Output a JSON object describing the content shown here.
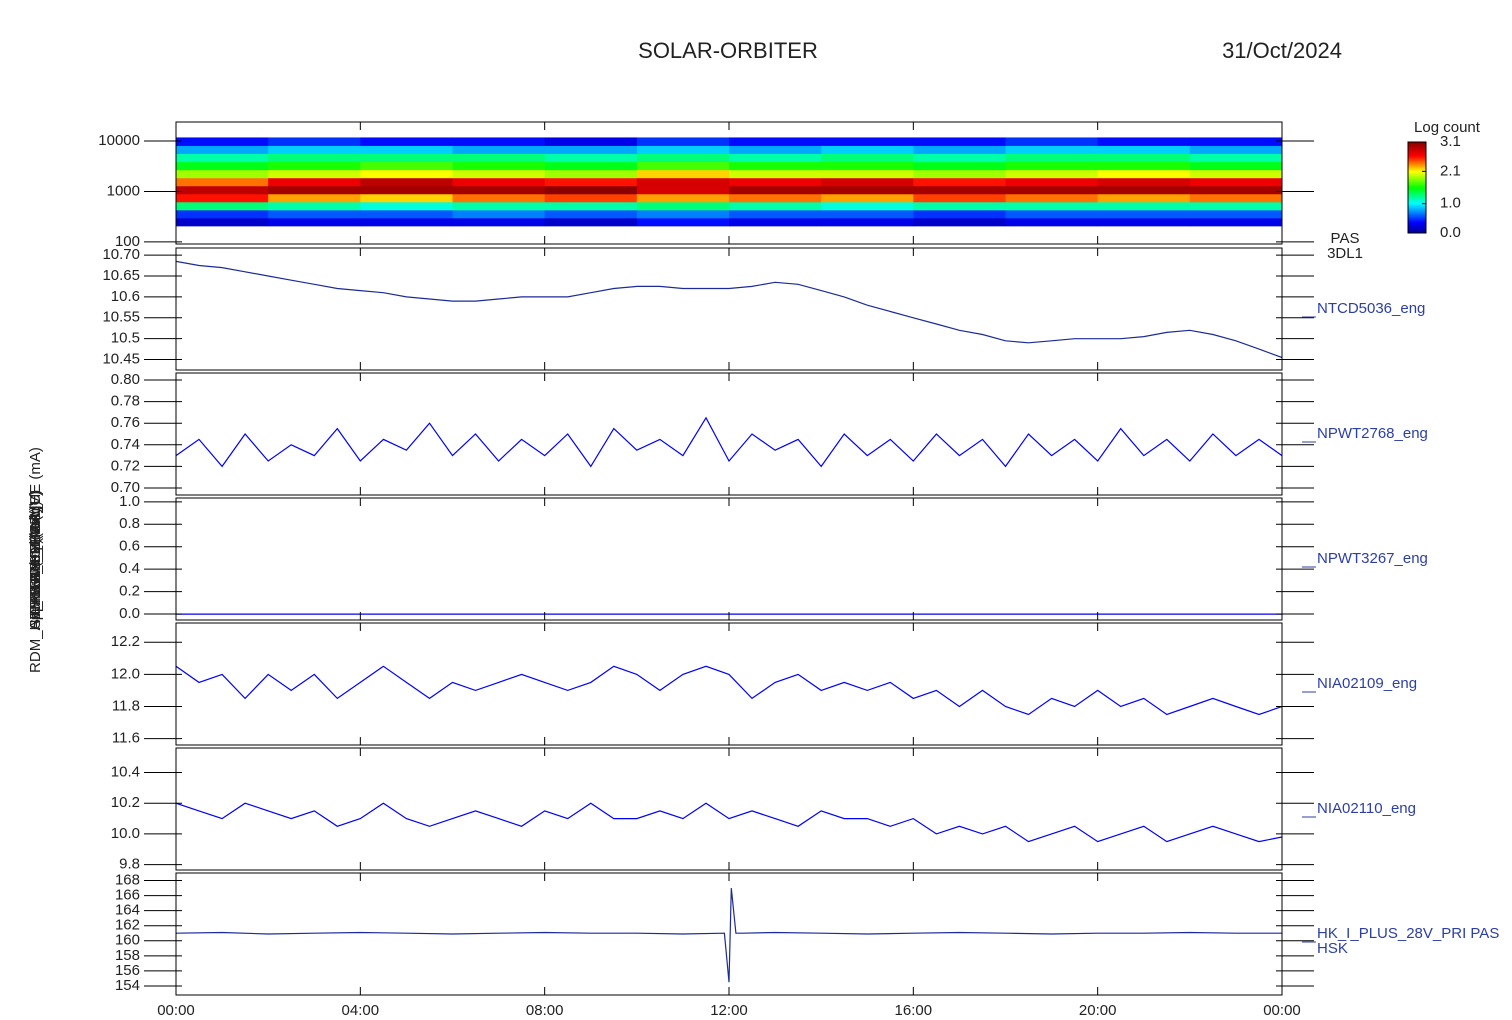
{
  "chart_data": [
    {
      "type": "heatmap",
      "title": "SOLAR-ORBITER",
      "date": "31/Oct/2024",
      "ylabel": "E (eV)",
      "right_label": [
        "PAS",
        "3DL1"
      ],
      "log": true,
      "xlim": [
        0,
        24
      ],
      "ylim": [
        91,
        23800
      ],
      "yticks": [
        100,
        1000,
        10000
      ],
      "x": [
        1,
        3,
        5,
        7,
        9,
        11,
        13,
        15,
        17,
        19,
        21,
        23
      ],
      "y": [
        250,
        360,
        520,
        750,
        1080,
        1560,
        2250,
        3250,
        4700,
        6800,
        9800
      ],
      "z": [
        [
          0.2,
          0.5,
          1.3,
          2.6,
          2.9,
          2.4,
          1.9,
          1.5,
          1.2,
          0.8,
          0.4
        ],
        [
          0.3,
          0.6,
          1.2,
          2.3,
          3.0,
          2.7,
          2.0,
          1.6,
          1.3,
          0.9,
          0.5
        ],
        [
          0.3,
          0.6,
          1.1,
          2.2,
          3.0,
          2.9,
          2.1,
          1.7,
          1.3,
          0.9,
          0.4
        ],
        [
          0.3,
          0.7,
          1.2,
          2.4,
          3.0,
          2.7,
          2.0,
          1.6,
          1.3,
          0.8,
          0.4
        ],
        [
          0.2,
          0.6,
          1.2,
          2.5,
          3.1,
          2.6,
          1.9,
          1.5,
          1.2,
          0.8,
          0.3
        ],
        [
          0.4,
          0.7,
          1.3,
          2.3,
          2.8,
          2.8,
          2.2,
          1.7,
          1.3,
          0.9,
          0.5
        ],
        [
          0.3,
          0.6,
          1.2,
          2.4,
          3.0,
          2.7,
          2.0,
          1.6,
          1.2,
          0.8,
          0.4
        ],
        [
          0.3,
          0.6,
          1.1,
          2.3,
          3.0,
          2.8,
          2.0,
          1.6,
          1.3,
          0.9,
          0.4
        ],
        [
          0.2,
          0.5,
          1.2,
          2.5,
          3.0,
          2.6,
          1.9,
          1.5,
          1.2,
          0.8,
          0.4
        ],
        [
          0.3,
          0.6,
          1.2,
          2.4,
          3.0,
          2.7,
          2.0,
          1.6,
          1.3,
          0.9,
          0.5
        ],
        [
          0.3,
          0.6,
          1.2,
          2.3,
          3.0,
          2.8,
          2.1,
          1.6,
          1.3,
          0.9,
          0.4
        ],
        [
          0.3,
          0.6,
          1.2,
          2.4,
          3.0,
          2.7,
          2.0,
          1.5,
          1.2,
          0.8,
          0.4
        ]
      ],
      "colorbar_label": "Log count",
      "zlim": [
        0,
        3.1
      ],
      "zticks": [
        {
          "value": 0,
          "label": "0.0"
        },
        {
          "value": 1,
          "label": "1.0"
        },
        2.1,
        3.1
      ]
    },
    {
      "type": "line",
      "ylabel": "Approx Temp (DegC)",
      "right_label": [
        "NTCD5036_eng"
      ],
      "color": "#1c2a9c",
      "xlim": [
        0,
        24
      ],
      "ylim": [
        10.425,
        10.717
      ],
      "yticks": [
        10.45,
        10.5,
        10.55,
        10.6,
        10.65,
        {
          "value": 10.7,
          "label": "10.70"
        }
      ],
      "x": [
        0,
        0.5,
        1,
        1.5,
        2,
        2.5,
        3,
        3.5,
        4,
        4.5,
        5,
        5.5,
        6,
        6.5,
        7,
        7.5,
        8,
        8.5,
        9,
        9.5,
        10,
        10.5,
        11,
        11.5,
        12,
        12.5,
        13,
        13.5,
        14,
        14.5,
        15,
        15.5,
        16,
        16.5,
        17,
        17.5,
        18,
        18.5,
        19,
        19.5,
        20,
        20.5,
        21,
        21.5,
        22,
        22.5,
        23,
        23.5,
        24
      ],
      "values": [
        10.685,
        10.675,
        10.67,
        10.66,
        10.65,
        10.64,
        10.63,
        10.62,
        10.615,
        10.61,
        10.6,
        10.595,
        10.59,
        10.59,
        10.595,
        10.6,
        10.6,
        10.6,
        10.61,
        10.62,
        10.625,
        10.625,
        10.62,
        10.62,
        10.62,
        10.625,
        10.635,
        10.63,
        10.615,
        10.6,
        10.58,
        10.565,
        10.55,
        10.535,
        10.52,
        10.51,
        10.495,
        10.49,
        10.495,
        10.5,
        10.5,
        10.5,
        10.505,
        10.515,
        10.52,
        10.51,
        10.495,
        10.475,
        10.455
      ]
    },
    {
      "type": "line",
      "ylabel": "SWA-EAS TEMP (V)",
      "right_label": [
        "NPWT2768_eng"
      ],
      "color": "#0000ff",
      "xlim": [
        0,
        24
      ],
      "ylim": [
        0.6935,
        0.8065
      ],
      "yticks": [
        {
          "value": 0.7,
          "label": "0.70"
        },
        0.72,
        0.74,
        0.76,
        0.78,
        {
          "value": 0.8,
          "label": "0.80"
        }
      ],
      "x": [
        0,
        0.5,
        1,
        1.5,
        2,
        2.5,
        3,
        3.5,
        4,
        4.5,
        5,
        5.5,
        6,
        6.5,
        7,
        7.5,
        8,
        8.5,
        9,
        9.5,
        10,
        10.5,
        11,
        11.5,
        12,
        12.5,
        13,
        13.5,
        14,
        14.5,
        15,
        15.5,
        16,
        16.5,
        17,
        17.5,
        18,
        18.5,
        19,
        19.5,
        20,
        20.5,
        21,
        21.5,
        22,
        22.5,
        23,
        23.5,
        24
      ],
      "values": [
        0.73,
        0.745,
        0.72,
        0.75,
        0.725,
        0.74,
        0.73,
        0.755,
        0.725,
        0.745,
        0.735,
        0.76,
        0.73,
        0.75,
        0.725,
        0.745,
        0.73,
        0.75,
        0.72,
        0.755,
        0.735,
        0.745,
        0.73,
        0.765,
        0.725,
        0.75,
        0.735,
        0.745,
        0.72,
        0.75,
        0.73,
        0.745,
        0.725,
        0.75,
        0.73,
        0.745,
        0.72,
        0.75,
        0.73,
        0.745,
        0.725,
        0.755,
        0.73,
        0.745,
        0.725,
        0.75,
        0.73,
        0.745,
        0.73
      ]
    },
    {
      "type": "line",
      "ylabel": "THERMO_HK (V)",
      "right_label": [
        "NPWT3267_eng"
      ],
      "color": "#0000ff",
      "xlim": [
        0,
        24
      ],
      "ylim": [
        -0.053,
        1.034
      ],
      "yticks": [
        {
          "value": 0,
          "label": "0.0"
        },
        0.2,
        0.4,
        0.6,
        0.8,
        {
          "value": 1,
          "label": "1.0"
        }
      ],
      "x": [
        0,
        0.5,
        1,
        1.5,
        2,
        2.5,
        3,
        3.5,
        4,
        4.5,
        5,
        5.5,
        6,
        6.5,
        7,
        7.5,
        8,
        8.5,
        9,
        9.5,
        10,
        10.5,
        11,
        11.5,
        12,
        12.5,
        13,
        13.5,
        14,
        14.5,
        15,
        15.5,
        16,
        16.5,
        17,
        17.5,
        18,
        18.5,
        19,
        19.5,
        20,
        20.5,
        21,
        21.5,
        22,
        22.5,
        23,
        23.5,
        24
      ],
      "values": [
        0,
        0,
        0,
        0,
        0,
        0,
        0,
        0,
        0,
        0,
        0,
        0,
        0,
        0,
        0,
        0,
        0,
        0,
        0,
        0,
        0,
        0,
        0,
        0,
        0,
        0,
        0,
        0,
        0,
        0,
        0,
        0,
        0,
        0,
        0,
        0,
        0,
        0,
        0,
        0,
        0,
        0,
        0,
        0,
        0,
        0,
        0,
        0,
        0
      ]
    },
    {
      "type": "line",
      "ylabel": "THERMO (Volt)",
      "right_label": [
        "NIA02109_eng"
      ],
      "color": "#0000ff",
      "xlim": [
        0,
        24
      ],
      "ylim": [
        11.56,
        12.32
      ],
      "yticks": [
        11.6,
        11.8,
        {
          "value": 12,
          "label": "12.0"
        },
        12.2
      ],
      "x": [
        0,
        0.5,
        1,
        1.5,
        2,
        2.5,
        3,
        3.5,
        4,
        4.5,
        5,
        5.5,
        6,
        6.5,
        7,
        7.5,
        8,
        8.5,
        9,
        9.5,
        10,
        10.5,
        11,
        11.5,
        12,
        12.5,
        13,
        13.5,
        14,
        14.5,
        15,
        15.5,
        16,
        16.5,
        17,
        17.5,
        18,
        18.5,
        19,
        19.5,
        20,
        20.5,
        21,
        21.5,
        22,
        22.5,
        23,
        23.5,
        24
      ],
      "values": [
        12.05,
        11.95,
        12.0,
        11.85,
        12.0,
        11.9,
        12.0,
        11.85,
        11.95,
        12.05,
        11.95,
        11.85,
        11.95,
        11.9,
        11.95,
        12.0,
        11.95,
        11.9,
        11.95,
        12.05,
        12.0,
        11.9,
        12.0,
        12.05,
        12.0,
        11.85,
        11.95,
        12.0,
        11.9,
        11.95,
        11.9,
        11.95,
        11.85,
        11.9,
        11.8,
        11.9,
        11.8,
        11.75,
        11.85,
        11.8,
        11.9,
        11.8,
        11.85,
        11.75,
        11.8,
        11.85,
        11.8,
        11.75,
        11.8
      ]
    },
    {
      "type": "line",
      "ylabel": "FPGA_HE (Volt)",
      "right_label": [
        "NIA02110_eng"
      ],
      "color": "#0000ff",
      "xlim": [
        0,
        24
      ],
      "ylim": [
        9.765,
        10.56
      ],
      "yticks": [
        9.8,
        {
          "value": 10,
          "label": "10.0"
        },
        10.2,
        10.4
      ],
      "x": [
        0,
        0.5,
        1,
        1.5,
        2,
        2.5,
        3,
        3.5,
        4,
        4.5,
        5,
        5.5,
        6,
        6.5,
        7,
        7.5,
        8,
        8.5,
        9,
        9.5,
        10,
        10.5,
        11,
        11.5,
        12,
        12.5,
        13,
        13.5,
        14,
        14.5,
        15,
        15.5,
        16,
        16.5,
        17,
        17.5,
        18,
        18.5,
        19,
        19.5,
        20,
        20.5,
        21,
        21.5,
        22,
        22.5,
        23,
        23.5,
        24
      ],
      "values": [
        10.2,
        10.15,
        10.1,
        10.2,
        10.15,
        10.1,
        10.15,
        10.05,
        10.1,
        10.2,
        10.1,
        10.05,
        10.1,
        10.15,
        10.1,
        10.05,
        10.15,
        10.1,
        10.2,
        10.1,
        10.1,
        10.15,
        10.1,
        10.2,
        10.1,
        10.15,
        10.1,
        10.05,
        10.15,
        10.1,
        10.1,
        10.05,
        10.1,
        10.0,
        10.05,
        10.0,
        10.05,
        9.95,
        10.0,
        10.05,
        9.95,
        10.0,
        10.05,
        9.95,
        10.0,
        10.05,
        10.0,
        9.95,
        9.98
      ]
    },
    {
      "type": "line",
      "ylabel": "RDM_HK_IMON_FPGA_HE (mA)",
      "right_label": [
        "HK_I_PLUS_28V_PRI PAS",
        "HSK"
      ],
      "color": "#1c2a9c",
      "xlim": [
        0,
        24
      ],
      "ylim": [
        152.8,
        169.0
      ],
      "yticks": [
        154,
        156,
        158,
        160,
        162,
        164,
        166,
        168
      ],
      "xticks": [
        {
          "value": 0,
          "label": "00:00"
        },
        {
          "value": 4,
          "label": "04:00"
        },
        {
          "value": 8,
          "label": "08:00"
        },
        {
          "value": 12,
          "label": "12:00"
        },
        {
          "value": 16,
          "label": "16:00"
        },
        {
          "value": 20,
          "label": "20:00"
        },
        {
          "value": 24,
          "label": "00:00"
        }
      ],
      "x": [
        0,
        1,
        2,
        3,
        4,
        5,
        6,
        7,
        8,
        9,
        10,
        11,
        11.9,
        12.0,
        12.05,
        12.15,
        12.3,
        13,
        14,
        15,
        16,
        17,
        18,
        19,
        20,
        21,
        22,
        23,
        24
      ],
      "values": [
        161.0,
        161.1,
        160.9,
        161.0,
        161.1,
        161.0,
        160.9,
        161.0,
        161.1,
        161.0,
        161.0,
        160.9,
        161.0,
        154.5,
        167.0,
        161.0,
        161.0,
        161.1,
        161.0,
        160.9,
        161.0,
        161.1,
        161.0,
        160.9,
        161.0,
        161.0,
        161.1,
        161.0,
        161.0
      ]
    }
  ]
}
